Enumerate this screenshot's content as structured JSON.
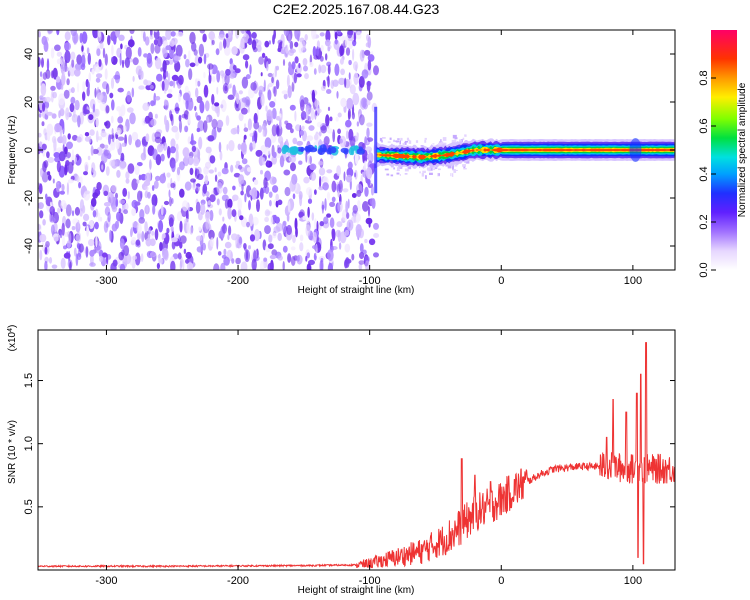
{
  "title": "C2E2.2025.167.08.44.G23",
  "chart_data": [
    {
      "type": "heatmap",
      "xlabel": "Height of straight line (km)",
      "ylabel": "Frequency (Hz)",
      "xlim": [
        -352,
        132
      ],
      "ylim": [
        -50,
        50
      ],
      "x_ticks": [
        "-300",
        "-200",
        "-100",
        "0",
        "100"
      ],
      "y_ticks": [
        "-40",
        "-20",
        "0",
        "20",
        "40"
      ],
      "noise_region_x": [
        -352,
        -95
      ],
      "signal_band": {
        "x_range": [
          -95,
          132
        ],
        "center_frequency": [
          [
            -95,
            -2
          ],
          [
            -60,
            -3
          ],
          [
            -40,
            -2
          ],
          [
            -20,
            0
          ],
          [
            0,
            0
          ],
          [
            100,
            0
          ],
          [
            110,
            0
          ],
          [
            132,
            0
          ]
        ],
        "half_width": 2
      },
      "colorbar": {
        "label": "Normalized spectral amplitude",
        "range": [
          0,
          1
        ],
        "ticks": [
          "0.0",
          "0.2",
          "0.4",
          "0.6",
          "0.8"
        ]
      },
      "grid": false
    },
    {
      "type": "line",
      "xlabel": "Height of straight line (km)",
      "ylabel": "SNR (10 * v/v)",
      "y_multiplier": "(x10",
      "y_multiplier_exp": "4",
      "y_multiplier_close": ")",
      "xlim": [
        -352,
        132
      ],
      "ylim": [
        0,
        1.9
      ],
      "x_ticks": [
        "-300",
        "-200",
        "-100",
        "0",
        "100"
      ],
      "y_ticks": [
        "0.5",
        "1.0",
        "1.5"
      ],
      "series": [
        {
          "color": "#ee3333",
          "envelope": [
            [
              -352,
              0.03
            ],
            [
              -250,
              0.03
            ],
            [
              -150,
              0.035
            ],
            [
              -110,
              0.04
            ],
            [
              -100,
              0.05
            ],
            [
              -80,
              0.1
            ],
            [
              -60,
              0.15
            ],
            [
              -40,
              0.26
            ],
            [
              -30,
              0.35
            ],
            [
              -20,
              0.45
            ],
            [
              -10,
              0.5
            ],
            [
              0,
              0.56
            ],
            [
              10,
              0.64
            ],
            [
              20,
              0.7
            ],
            [
              30,
              0.76
            ],
            [
              40,
              0.8
            ],
            [
              60,
              0.82
            ],
            [
              80,
              0.82
            ],
            [
              100,
              0.8
            ],
            [
              132,
              0.8
            ]
          ],
          "spikes": [
            [
              -30,
              0.88
            ],
            [
              -20,
              0.75
            ],
            [
              -8,
              0.7
            ],
            [
              80,
              1.05
            ],
            [
              85,
              1.35
            ],
            [
              95,
              1.25
            ],
            [
              103,
              1.4
            ],
            [
              104,
              0.1
            ],
            [
              106,
              1.55
            ],
            [
              108,
              0.05
            ],
            [
              110,
              1.8
            ]
          ]
        }
      ]
    }
  ]
}
